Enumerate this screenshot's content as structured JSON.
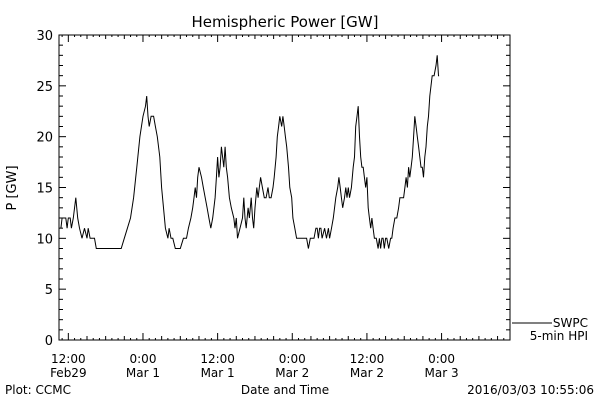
{
  "chart_data": {
    "type": "line",
    "title": "Hemispheric Power [GW]",
    "ylabel": "P [GW]",
    "xlabel": "Date and Time",
    "ylim": [
      0,
      30
    ],
    "y_ticks": [
      0,
      5,
      10,
      15,
      20,
      25,
      30
    ],
    "x_unit": "hours since 2016-02-29 12:00",
    "x_ticks": [
      {
        "t": 0,
        "line1": "12:00",
        "line2": "Feb29"
      },
      {
        "t": 12,
        "line1": "0:00",
        "line2": "Mar 1"
      },
      {
        "t": 24,
        "line1": "12:00",
        "line2": "Mar 1"
      },
      {
        "t": 36,
        "line1": "0:00",
        "line2": "Mar 2"
      },
      {
        "t": 48,
        "line1": "12:00",
        "line2": "Mar 2"
      },
      {
        "t": 60,
        "line1": "0:00",
        "line2": "Mar 3"
      }
    ],
    "xlim": [
      -1.5,
      71
    ],
    "legend": {
      "line1": "SWPC",
      "line2": "5-min HPI"
    },
    "series": [
      {
        "name": "SWPC 5-min HPI",
        "color": "#000000",
        "points": [
          [
            -1.2,
            11
          ],
          [
            -1.0,
            12
          ],
          [
            -0.4,
            12
          ],
          [
            -0.2,
            11
          ],
          [
            0.0,
            12
          ],
          [
            0.3,
            12
          ],
          [
            0.5,
            11
          ],
          [
            0.8,
            12
          ],
          [
            1.2,
            14
          ],
          [
            1.5,
            12
          ],
          [
            1.8,
            11
          ],
          [
            2.2,
            10
          ],
          [
            2.6,
            11
          ],
          [
            3.0,
            10
          ],
          [
            3.2,
            11
          ],
          [
            3.5,
            10
          ],
          [
            4.2,
            10
          ],
          [
            4.5,
            9
          ],
          [
            8.5,
            9
          ],
          [
            9.0,
            10
          ],
          [
            9.5,
            11
          ],
          [
            10.0,
            12
          ],
          [
            10.5,
            14
          ],
          [
            11.0,
            17
          ],
          [
            11.5,
            20
          ],
          [
            12.0,
            22
          ],
          [
            12.4,
            23
          ],
          [
            12.6,
            24
          ],
          [
            12.8,
            22
          ],
          [
            13.0,
            21
          ],
          [
            13.3,
            22
          ],
          [
            13.7,
            22
          ],
          [
            14.0,
            21
          ],
          [
            14.3,
            20
          ],
          [
            14.7,
            18
          ],
          [
            15.0,
            15
          ],
          [
            15.3,
            13
          ],
          [
            15.6,
            11
          ],
          [
            16.0,
            10
          ],
          [
            16.2,
            11
          ],
          [
            16.5,
            10
          ],
          [
            16.8,
            10
          ],
          [
            17.2,
            9
          ],
          [
            18.0,
            9
          ],
          [
            18.5,
            10
          ],
          [
            19.0,
            10
          ],
          [
            19.3,
            11
          ],
          [
            19.7,
            12
          ],
          [
            20.0,
            13
          ],
          [
            20.2,
            14
          ],
          [
            20.4,
            15
          ],
          [
            20.6,
            14
          ],
          [
            20.8,
            16
          ],
          [
            21.0,
            17
          ],
          [
            21.4,
            16
          ],
          [
            21.7,
            15
          ],
          [
            22.0,
            14
          ],
          [
            22.3,
            13
          ],
          [
            22.6,
            12
          ],
          [
            22.9,
            11
          ],
          [
            23.2,
            12
          ],
          [
            23.6,
            14
          ],
          [
            23.8,
            16
          ],
          [
            24.0,
            18
          ],
          [
            24.2,
            16
          ],
          [
            24.4,
            17
          ],
          [
            24.6,
            19
          ],
          [
            24.8,
            18
          ],
          [
            25.0,
            17
          ],
          [
            25.2,
            19
          ],
          [
            25.4,
            17
          ],
          [
            25.6,
            16
          ],
          [
            25.9,
            14
          ],
          [
            26.2,
            13
          ],
          [
            26.6,
            12
          ],
          [
            26.8,
            11
          ],
          [
            27.0,
            12
          ],
          [
            27.2,
            10
          ],
          [
            27.6,
            11
          ],
          [
            28.0,
            12
          ],
          [
            28.2,
            14
          ],
          [
            28.4,
            12
          ],
          [
            28.6,
            11
          ],
          [
            28.9,
            13
          ],
          [
            29.1,
            12
          ],
          [
            29.4,
            14
          ],
          [
            29.6,
            12
          ],
          [
            29.8,
            11
          ],
          [
            30.0,
            13
          ],
          [
            30.3,
            15
          ],
          [
            30.5,
            14
          ],
          [
            30.7,
            15
          ],
          [
            30.9,
            16
          ],
          [
            31.2,
            15
          ],
          [
            31.5,
            14
          ],
          [
            31.8,
            14
          ],
          [
            32.1,
            15
          ],
          [
            32.3,
            14
          ],
          [
            32.6,
            14
          ],
          [
            32.9,
            15
          ],
          [
            33.1,
            16
          ],
          [
            33.4,
            18
          ],
          [
            33.6,
            20
          ],
          [
            33.8,
            21
          ],
          [
            34.0,
            22
          ],
          [
            34.3,
            21
          ],
          [
            34.5,
            22
          ],
          [
            34.7,
            21
          ],
          [
            34.9,
            20
          ],
          [
            35.1,
            19
          ],
          [
            35.4,
            17
          ],
          [
            35.6,
            15
          ],
          [
            35.9,
            14
          ],
          [
            36.1,
            12
          ],
          [
            36.4,
            11
          ],
          [
            36.7,
            10
          ],
          [
            37.0,
            10
          ],
          [
            37.5,
            10
          ],
          [
            38.0,
            10
          ],
          [
            38.3,
            10
          ],
          [
            38.6,
            9
          ],
          [
            38.9,
            10
          ],
          [
            39.2,
            10
          ],
          [
            39.5,
            10
          ],
          [
            39.8,
            11
          ],
          [
            40.0,
            11
          ],
          [
            40.2,
            10
          ],
          [
            40.4,
            11
          ],
          [
            40.6,
            11
          ],
          [
            40.8,
            10
          ],
          [
            41.2,
            11
          ],
          [
            41.5,
            10
          ],
          [
            41.8,
            11
          ],
          [
            42.0,
            10
          ],
          [
            42.3,
            11
          ],
          [
            42.6,
            12
          ],
          [
            43.0,
            14
          ],
          [
            43.3,
            15
          ],
          [
            43.5,
            16
          ],
          [
            43.7,
            15
          ],
          [
            43.9,
            14
          ],
          [
            44.1,
            13
          ],
          [
            44.4,
            14
          ],
          [
            44.6,
            15
          ],
          [
            44.8,
            14
          ],
          [
            45.0,
            15
          ],
          [
            45.2,
            14
          ],
          [
            45.5,
            15
          ],
          [
            45.8,
            17
          ],
          [
            46.0,
            18
          ],
          [
            46.2,
            21
          ],
          [
            46.4,
            22
          ],
          [
            46.6,
            23
          ],
          [
            46.8,
            20
          ],
          [
            47.0,
            18
          ],
          [
            47.2,
            17
          ],
          [
            47.4,
            17
          ],
          [
            47.6,
            16
          ],
          [
            47.8,
            15
          ],
          [
            48.0,
            16
          ],
          [
            48.2,
            13
          ],
          [
            48.4,
            12
          ],
          [
            48.6,
            11
          ],
          [
            48.8,
            12
          ],
          [
            49.0,
            11
          ],
          [
            49.2,
            10
          ],
          [
            49.5,
            10
          ],
          [
            49.8,
            9
          ],
          [
            50.0,
            10
          ],
          [
            50.2,
            9
          ],
          [
            50.4,
            10
          ],
          [
            50.6,
            10
          ],
          [
            50.8,
            9
          ],
          [
            51.0,
            10
          ],
          [
            51.2,
            10
          ],
          [
            51.5,
            9
          ],
          [
            51.8,
            10
          ],
          [
            52.0,
            10
          ],
          [
            52.2,
            11
          ],
          [
            52.5,
            12
          ],
          [
            52.8,
            12
          ],
          [
            53.1,
            13
          ],
          [
            53.3,
            14
          ],
          [
            53.6,
            14
          ],
          [
            53.9,
            14
          ],
          [
            54.1,
            15
          ],
          [
            54.3,
            16
          ],
          [
            54.5,
            15
          ],
          [
            54.7,
            17
          ],
          [
            54.9,
            16
          ],
          [
            55.1,
            17
          ],
          [
            55.3,
            18
          ],
          [
            55.5,
            20
          ],
          [
            55.7,
            22
          ],
          [
            55.9,
            21
          ],
          [
            56.1,
            20
          ],
          [
            56.3,
            19
          ],
          [
            56.5,
            18
          ],
          [
            56.7,
            17
          ],
          [
            56.9,
            17
          ],
          [
            57.1,
            16
          ],
          [
            57.3,
            18
          ],
          [
            57.5,
            19
          ],
          [
            57.7,
            21
          ],
          [
            57.9,
            22
          ],
          [
            58.1,
            24
          ],
          [
            58.3,
            25
          ],
          [
            58.5,
            26
          ],
          [
            58.8,
            26
          ],
          [
            59.1,
            27
          ],
          [
            59.3,
            28
          ],
          [
            59.5,
            26
          ],
          [
            59.6,
            26
          ]
        ]
      }
    ]
  },
  "footer": {
    "left": "Plot: CCMC",
    "right": "2016/03/03 10:55:06"
  }
}
